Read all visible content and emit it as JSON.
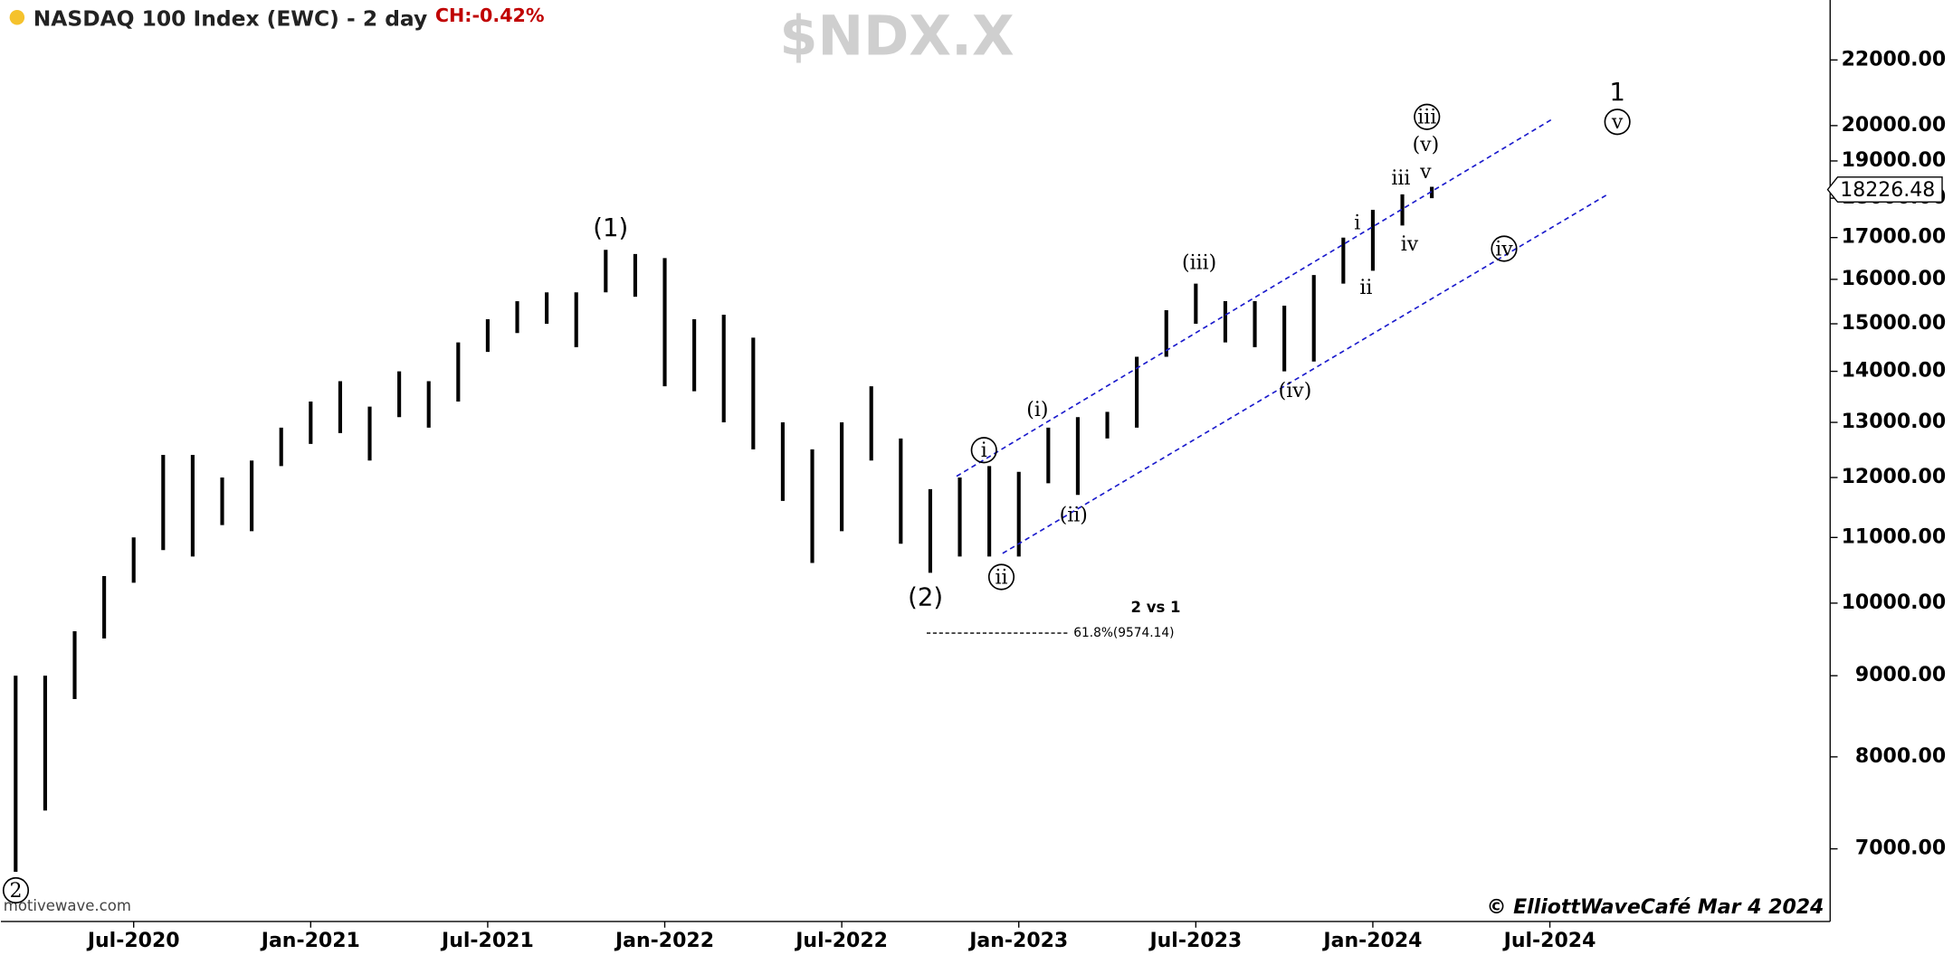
{
  "chart_data": {
    "type": "range-bar",
    "title": "NASDAQ 100 Index (EWC) - 2 day",
    "change": "CH:-0.42%",
    "symbol": "$NDX.X",
    "source": "motivewave.com",
    "credit": "© ElliottWaveCafé Mar 4 2024",
    "color": "#000000",
    "channel_color": "#1a1acc",
    "log_scale": true,
    "categories": [
      null,
      null,
      null,
      null,
      "Jul-2020",
      null,
      null,
      null,
      null,
      null,
      "Jan-2021",
      null,
      null,
      null,
      null,
      null,
      "Jul-2021",
      null,
      null,
      null,
      null,
      null,
      "Jan-2022",
      null,
      null,
      null,
      null,
      null,
      "Jul-2022",
      null,
      null,
      null,
      null,
      null,
      "Jan-2023",
      null,
      null,
      null,
      null,
      null,
      "Jul-2023",
      null,
      null,
      null,
      null,
      null,
      "Jan-2024",
      null,
      null,
      null,
      null,
      null,
      "Jul-2024",
      null,
      null,
      null,
      null,
      null,
      null,
      null,
      null,
      null
    ],
    "high": [
      9000,
      9000,
      9600,
      10400,
      11000,
      12400,
      12400,
      12000,
      12300,
      12900,
      13400,
      13800,
      13300,
      14000,
      13800,
      14600,
      15100,
      15500,
      15700,
      15700,
      16700,
      16600,
      16500,
      15100,
      15200,
      14700,
      13000,
      12500,
      13000,
      13700,
      12700,
      11800,
      12000,
      12200,
      12100,
      12900,
      13100,
      13200,
      14300,
      15300,
      15900,
      15500,
      15500,
      15400,
      16100,
      17000,
      17700,
      18100,
      18300,
      null,
      null,
      null,
      null,
      null,
      null,
      null,
      null,
      null,
      null,
      null,
      null,
      null
    ],
    "low": [
      6771,
      7400,
      8700,
      9500,
      10300,
      10800,
      10700,
      11200,
      11100,
      12200,
      12600,
      12800,
      12300,
      13100,
      12900,
      13400,
      14400,
      14800,
      15000,
      14500,
      15700,
      15600,
      13700,
      13600,
      13000,
      12500,
      11600,
      10600,
      11100,
      12300,
      10900,
      10450,
      10700,
      10700,
      10700,
      11900,
      11700,
      12700,
      12900,
      14300,
      15000,
      14600,
      14500,
      14000,
      14200,
      15900,
      16200,
      17300,
      18000,
      null,
      null,
      null,
      null,
      null,
      null,
      null,
      null,
      null,
      null,
      null,
      null,
      null
    ],
    "ylim": [
      6300,
      24000
    ],
    "yticks": [
      {
        "value": 7000,
        "label": "7000.00"
      },
      {
        "value": 8000,
        "label": "8000.00"
      },
      {
        "value": 9000,
        "label": "9000.00"
      },
      {
        "value": 10000,
        "label": "10000.00"
      },
      {
        "value": 11000,
        "label": "11000.00"
      },
      {
        "value": 12000,
        "label": "12000.00"
      },
      {
        "value": 13000,
        "label": "13000.00"
      },
      {
        "value": 14000,
        "label": "14000.00"
      },
      {
        "value": 15000,
        "label": "15000.00"
      },
      {
        "value": 16000,
        "label": "16000.00"
      },
      {
        "value": 17000,
        "label": "17000.00"
      },
      {
        "value": 18000,
        "label": "18000.00"
      },
      {
        "value": 19000,
        "label": "19000.00"
      },
      {
        "value": 20000,
        "label": "20000.00"
      },
      {
        "value": 22000,
        "label": "22000.00"
      }
    ],
    "last_price": 18226.48,
    "fib_level": 9574.14,
    "fib_label": "61.8%(9574.14)",
    "fib_title": "2 vs 1",
    "annotations": [
      "(1)",
      "(2)",
      "2",
      "i",
      "ii",
      "(i)",
      "(ii)",
      "(iii)",
      "(iv)",
      "(v)",
      "iii",
      "i",
      "ii",
      "iii",
      "iv",
      "v",
      "iv",
      "1",
      "v"
    ]
  }
}
